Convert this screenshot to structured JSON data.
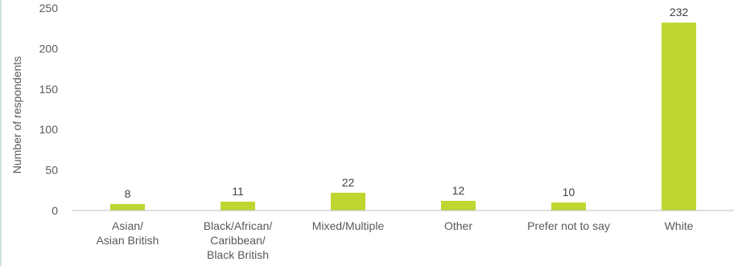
{
  "chart_data": {
    "type": "bar",
    "title": "",
    "xlabel": "",
    "ylabel": "Number of respondents",
    "ylim": [
      0,
      250
    ],
    "yticks": [
      0,
      50,
      100,
      150,
      200,
      250
    ],
    "grid": false,
    "legend": "none",
    "categories": [
      [
        "Asian/",
        "Asian British"
      ],
      [
        "Black/African/",
        "Caribbean/",
        "Black British"
      ],
      [
        "Mixed/Multiple"
      ],
      [
        "Other"
      ],
      [
        "Prefer not to say"
      ],
      [
        "White"
      ]
    ],
    "values": [
      8,
      11,
      22,
      12,
      10,
      232
    ],
    "colors": {
      "bar": "#bfd630",
      "axis": "#bfbfbf",
      "text": "#595959"
    }
  }
}
